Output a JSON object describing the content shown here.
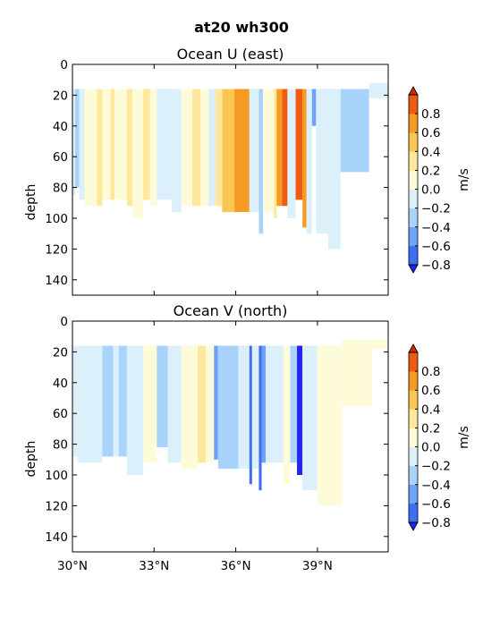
{
  "suptitle": "at20 wh300",
  "colors": {
    "levels": [
      "#2424f0",
      "#3d6ef5",
      "#6fa1f8",
      "#a8d3fa",
      "#dbf0fb",
      "#fefbd9",
      "#fde89b",
      "#fbc754",
      "#f59a22",
      "#f05a11",
      "#d42a06"
    ],
    "under": "#1414c8",
    "over": "#b00000"
  },
  "colorbar": {
    "boundaries": [
      -1.0,
      -0.8,
      -0.6,
      -0.4,
      -0.2,
      0.0,
      0.2,
      0.4,
      0.6,
      0.8,
      1.0
    ],
    "ticks": [
      "−0.8",
      "−0.6",
      "−0.4",
      "−0.2",
      "0.0",
      "0.2",
      "0.4",
      "0.6",
      "0.8"
    ],
    "label": "m/s"
  },
  "chart_data": [
    {
      "type": "heatmap",
      "title": "Ocean U (east)",
      "xlabel": "",
      "ylabel": "depth",
      "xlim": [
        30.0,
        41.6
      ],
      "ylim": [
        150,
        0
      ],
      "xticks": [
        "30°N",
        "33°N",
        "36°N",
        "39°N"
      ],
      "yticks": [
        "0",
        "20",
        "40",
        "60",
        "80",
        "100",
        "120",
        "140"
      ],
      "profiles": [
        {
          "x0": 30.0,
          "x1": 30.1,
          "top": 16,
          "bottom": 85,
          "v": -0.1
        },
        {
          "x0": 30.1,
          "x1": 30.25,
          "top": 16,
          "bottom": 80,
          "v": -0.3
        },
        {
          "x0": 30.25,
          "x1": 30.45,
          "top": 16,
          "bottom": 88,
          "v": -0.1
        },
        {
          "x0": 30.45,
          "x1": 30.9,
          "top": 16,
          "bottom": 92,
          "v": 0.1
        },
        {
          "x0": 30.9,
          "x1": 31.1,
          "top": 16,
          "bottom": 92,
          "v": 0.3
        },
        {
          "x0": 31.1,
          "x1": 31.4,
          "top": 16,
          "bottom": 88,
          "v": 0.1
        },
        {
          "x0": 31.4,
          "x1": 31.55,
          "top": 16,
          "bottom": 88,
          "v": 0.3
        },
        {
          "x0": 31.55,
          "x1": 32.0,
          "top": 16,
          "bottom": 88,
          "v": 0.1
        },
        {
          "x0": 32.0,
          "x1": 32.2,
          "top": 16,
          "bottom": 92,
          "v": 0.3
        },
        {
          "x0": 32.2,
          "x1": 32.6,
          "top": 16,
          "bottom": 100,
          "v": 0.1
        },
        {
          "x0": 32.6,
          "x1": 32.85,
          "top": 16,
          "bottom": 88,
          "v": 0.3
        },
        {
          "x0": 32.85,
          "x1": 33.1,
          "top": 16,
          "bottom": 92,
          "v": 0.1
        },
        {
          "x0": 33.1,
          "x1": 33.65,
          "top": 16,
          "bottom": 88,
          "v": -0.1
        },
        {
          "x0": 33.65,
          "x1": 34.0,
          "top": 16,
          "bottom": 96,
          "v": -0.1
        },
        {
          "x0": 34.0,
          "x1": 34.4,
          "top": 16,
          "bottom": 92,
          "v": 0.1
        },
        {
          "x0": 34.4,
          "x1": 34.7,
          "top": 16,
          "bottom": 92,
          "v": 0.3
        },
        {
          "x0": 34.7,
          "x1": 35.0,
          "top": 16,
          "bottom": 92,
          "v": 0.1
        },
        {
          "x0": 35.0,
          "x1": 35.25,
          "top": 16,
          "bottom": 92,
          "v": -0.1
        },
        {
          "x0": 35.25,
          "x1": 35.5,
          "top": 16,
          "bottom": 92,
          "v": 0.3
        },
        {
          "x0": 35.5,
          "x1": 35.95,
          "top": 16,
          "bottom": 96,
          "v": 0.5
        },
        {
          "x0": 35.95,
          "x1": 36.5,
          "top": 16,
          "bottom": 96,
          "v": 0.7
        },
        {
          "x0": 36.5,
          "x1": 36.85,
          "top": 16,
          "bottom": 96,
          "v": -0.1
        },
        {
          "x0": 36.85,
          "x1": 37.0,
          "top": 16,
          "bottom": 110,
          "v": -0.3
        },
        {
          "x0": 37.0,
          "x1": 37.4,
          "top": 16,
          "bottom": 96,
          "v": 0.1
        },
        {
          "x0": 37.4,
          "x1": 37.5,
          "top": 16,
          "bottom": 100,
          "v": 0.3
        },
        {
          "x0": 37.5,
          "x1": 37.7,
          "top": 16,
          "bottom": 92,
          "v": 0.7
        },
        {
          "x0": 37.7,
          "x1": 37.9,
          "top": 16,
          "bottom": 92,
          "v": 0.9
        },
        {
          "x0": 37.9,
          "x1": 38.2,
          "top": 16,
          "bottom": 100,
          "v": -0.1
        },
        {
          "x0": 38.2,
          "x1": 38.45,
          "top": 16,
          "bottom": 88,
          "v": 0.9
        },
        {
          "x0": 38.45,
          "x1": 38.6,
          "top": 16,
          "bottom": 106,
          "v": 0.7
        },
        {
          "x0": 38.6,
          "x1": 38.8,
          "top": 16,
          "bottom": 110,
          "v": -0.1
        },
        {
          "x0": 38.8,
          "x1": 38.95,
          "top": 16,
          "bottom": 40,
          "v": -0.5
        },
        {
          "x0": 38.95,
          "x1": 39.4,
          "top": 16,
          "bottom": 110,
          "v": -0.1
        },
        {
          "x0": 39.4,
          "x1": 39.85,
          "top": 16,
          "bottom": 120,
          "v": -0.1
        },
        {
          "x0": 39.85,
          "x1": 40.9,
          "top": 16,
          "bottom": 70,
          "v": -0.3
        },
        {
          "x0": 40.9,
          "x1": 41.6,
          "top": 12,
          "bottom": 22,
          "v": -0.1
        }
      ]
    },
    {
      "type": "heatmap",
      "title": "Ocean V (north)",
      "xlabel": "",
      "ylabel": "depth",
      "xlim": [
        30.0,
        41.6
      ],
      "ylim": [
        150,
        0
      ],
      "xticks": [
        "30°N",
        "33°N",
        "36°N",
        "39°N"
      ],
      "yticks": [
        "0",
        "20",
        "40",
        "60",
        "80",
        "100",
        "120",
        "140"
      ],
      "profiles": [
        {
          "x0": 30.0,
          "x1": 30.2,
          "top": 16,
          "bottom": 88,
          "v": -0.1
        },
        {
          "x0": 30.2,
          "x1": 31.1,
          "top": 16,
          "bottom": 92,
          "v": -0.1
        },
        {
          "x0": 31.1,
          "x1": 31.5,
          "top": 16,
          "bottom": 88,
          "v": -0.3
        },
        {
          "x0": 31.5,
          "x1": 31.7,
          "top": 16,
          "bottom": 88,
          "v": -0.1
        },
        {
          "x0": 31.7,
          "x1": 32.0,
          "top": 16,
          "bottom": 88,
          "v": -0.3
        },
        {
          "x0": 32.0,
          "x1": 32.6,
          "top": 16,
          "bottom": 100,
          "v": -0.1
        },
        {
          "x0": 32.6,
          "x1": 33.1,
          "top": 16,
          "bottom": 92,
          "v": 0.1
        },
        {
          "x0": 33.1,
          "x1": 33.5,
          "top": 16,
          "bottom": 82,
          "v": -0.3
        },
        {
          "x0": 33.5,
          "x1": 34.0,
          "top": 16,
          "bottom": 92,
          "v": -0.1
        },
        {
          "x0": 34.0,
          "x1": 34.6,
          "top": 16,
          "bottom": 96,
          "v": 0.1
        },
        {
          "x0": 34.6,
          "x1": 34.9,
          "top": 16,
          "bottom": 92,
          "v": 0.3
        },
        {
          "x0": 34.9,
          "x1": 35.2,
          "top": 16,
          "bottom": 92,
          "v": 0.1
        },
        {
          "x0": 35.2,
          "x1": 35.35,
          "top": 16,
          "bottom": 90,
          "v": -0.5
        },
        {
          "x0": 35.35,
          "x1": 36.1,
          "top": 16,
          "bottom": 96,
          "v": -0.3
        },
        {
          "x0": 36.1,
          "x1": 36.5,
          "top": 16,
          "bottom": 96,
          "v": -0.1
        },
        {
          "x0": 36.5,
          "x1": 36.6,
          "top": 16,
          "bottom": 106,
          "v": -0.7
        },
        {
          "x0": 36.6,
          "x1": 36.85,
          "top": 16,
          "bottom": 96,
          "v": -0.1
        },
        {
          "x0": 36.85,
          "x1": 36.95,
          "top": 16,
          "bottom": 110,
          "v": -0.7
        },
        {
          "x0": 36.95,
          "x1": 37.1,
          "top": 16,
          "bottom": 92,
          "v": -0.5
        },
        {
          "x0": 37.1,
          "x1": 37.75,
          "top": 16,
          "bottom": 92,
          "v": -0.1
        },
        {
          "x0": 37.75,
          "x1": 38.0,
          "top": 16,
          "bottom": 106,
          "v": 0.1
        },
        {
          "x0": 38.0,
          "x1": 38.25,
          "top": 16,
          "bottom": 92,
          "v": -0.3
        },
        {
          "x0": 38.25,
          "x1": 38.45,
          "top": 16,
          "bottom": 100,
          "v": -0.9
        },
        {
          "x0": 38.45,
          "x1": 39.0,
          "top": 16,
          "bottom": 110,
          "v": -0.1
        },
        {
          "x0": 39.0,
          "x1": 39.9,
          "top": 16,
          "bottom": 120,
          "v": 0.1
        },
        {
          "x0": 39.9,
          "x1": 41.0,
          "top": 12,
          "bottom": 55,
          "v": 0.1
        },
        {
          "x0": 41.0,
          "x1": 41.6,
          "top": 12,
          "bottom": 18,
          "v": 0.1
        }
      ]
    }
  ]
}
